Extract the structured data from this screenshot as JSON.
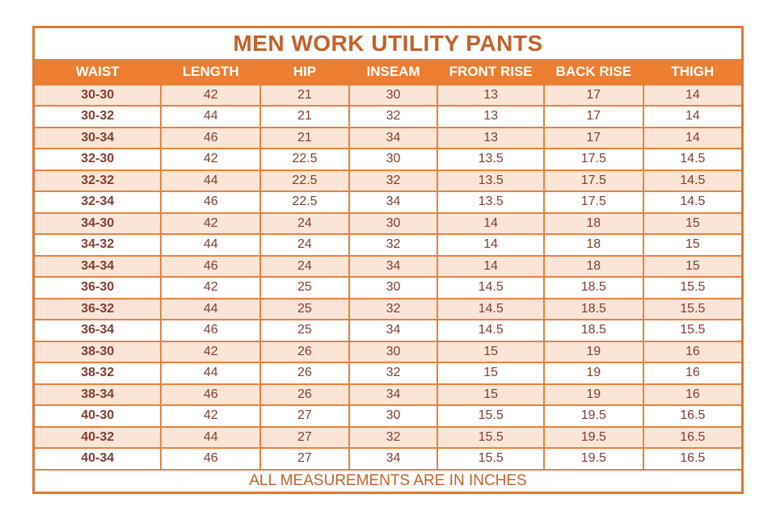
{
  "colors": {
    "header_bg": "#ed7d31",
    "header_text": "#ffffff",
    "row_stripe_bg": "#fbe5d6",
    "row_plain_bg": "#ffffff",
    "grid_border": "#e8823d",
    "outer_border": "#dd7a33",
    "title_text": "#c4612c",
    "cell_text": "#823e33"
  },
  "chart_data": {
    "type": "table",
    "title": "MEN WORK UTILITY PANTS",
    "footnote": "ALL MEASUREMENTS ARE IN INCHES",
    "units": "inches",
    "columns": [
      "WAIST",
      "LENGTH",
      "HIP",
      "INSEAM",
      "FRONT RISE",
      "BACK RISE",
      "THIGH"
    ],
    "rows": [
      [
        "30-30",
        42,
        21,
        30,
        13,
        17,
        14
      ],
      [
        "30-32",
        44,
        21,
        32,
        13,
        17,
        14
      ],
      [
        "30-34",
        46,
        21,
        34,
        13,
        17,
        14
      ],
      [
        "32-30",
        42,
        22.5,
        30,
        13.5,
        17.5,
        14.5
      ],
      [
        "32-32",
        44,
        22.5,
        32,
        13.5,
        17.5,
        14.5
      ],
      [
        "32-34",
        46,
        22.5,
        34,
        13.5,
        17.5,
        14.5
      ],
      [
        "34-30",
        42,
        24,
        30,
        14,
        18,
        15
      ],
      [
        "34-32",
        44,
        24,
        32,
        14,
        18,
        15
      ],
      [
        "34-34",
        46,
        24,
        34,
        14,
        18,
        15
      ],
      [
        "36-30",
        42,
        25,
        30,
        14.5,
        18.5,
        15.5
      ],
      [
        "36-32",
        44,
        25,
        32,
        14.5,
        18.5,
        15.5
      ],
      [
        "36-34",
        46,
        25,
        34,
        14.5,
        18.5,
        15.5
      ],
      [
        "38-30",
        42,
        26,
        30,
        15,
        19,
        16
      ],
      [
        "38-32",
        44,
        26,
        32,
        15,
        19,
        16
      ],
      [
        "38-34",
        46,
        26,
        34,
        15,
        19,
        16
      ],
      [
        "40-30",
        42,
        27,
        30,
        15.5,
        19.5,
        16.5
      ],
      [
        "40-32",
        44,
        27,
        32,
        15.5,
        19.5,
        16.5
      ],
      [
        "40-34",
        46,
        27,
        34,
        15.5,
        19.5,
        16.5
      ]
    ]
  }
}
